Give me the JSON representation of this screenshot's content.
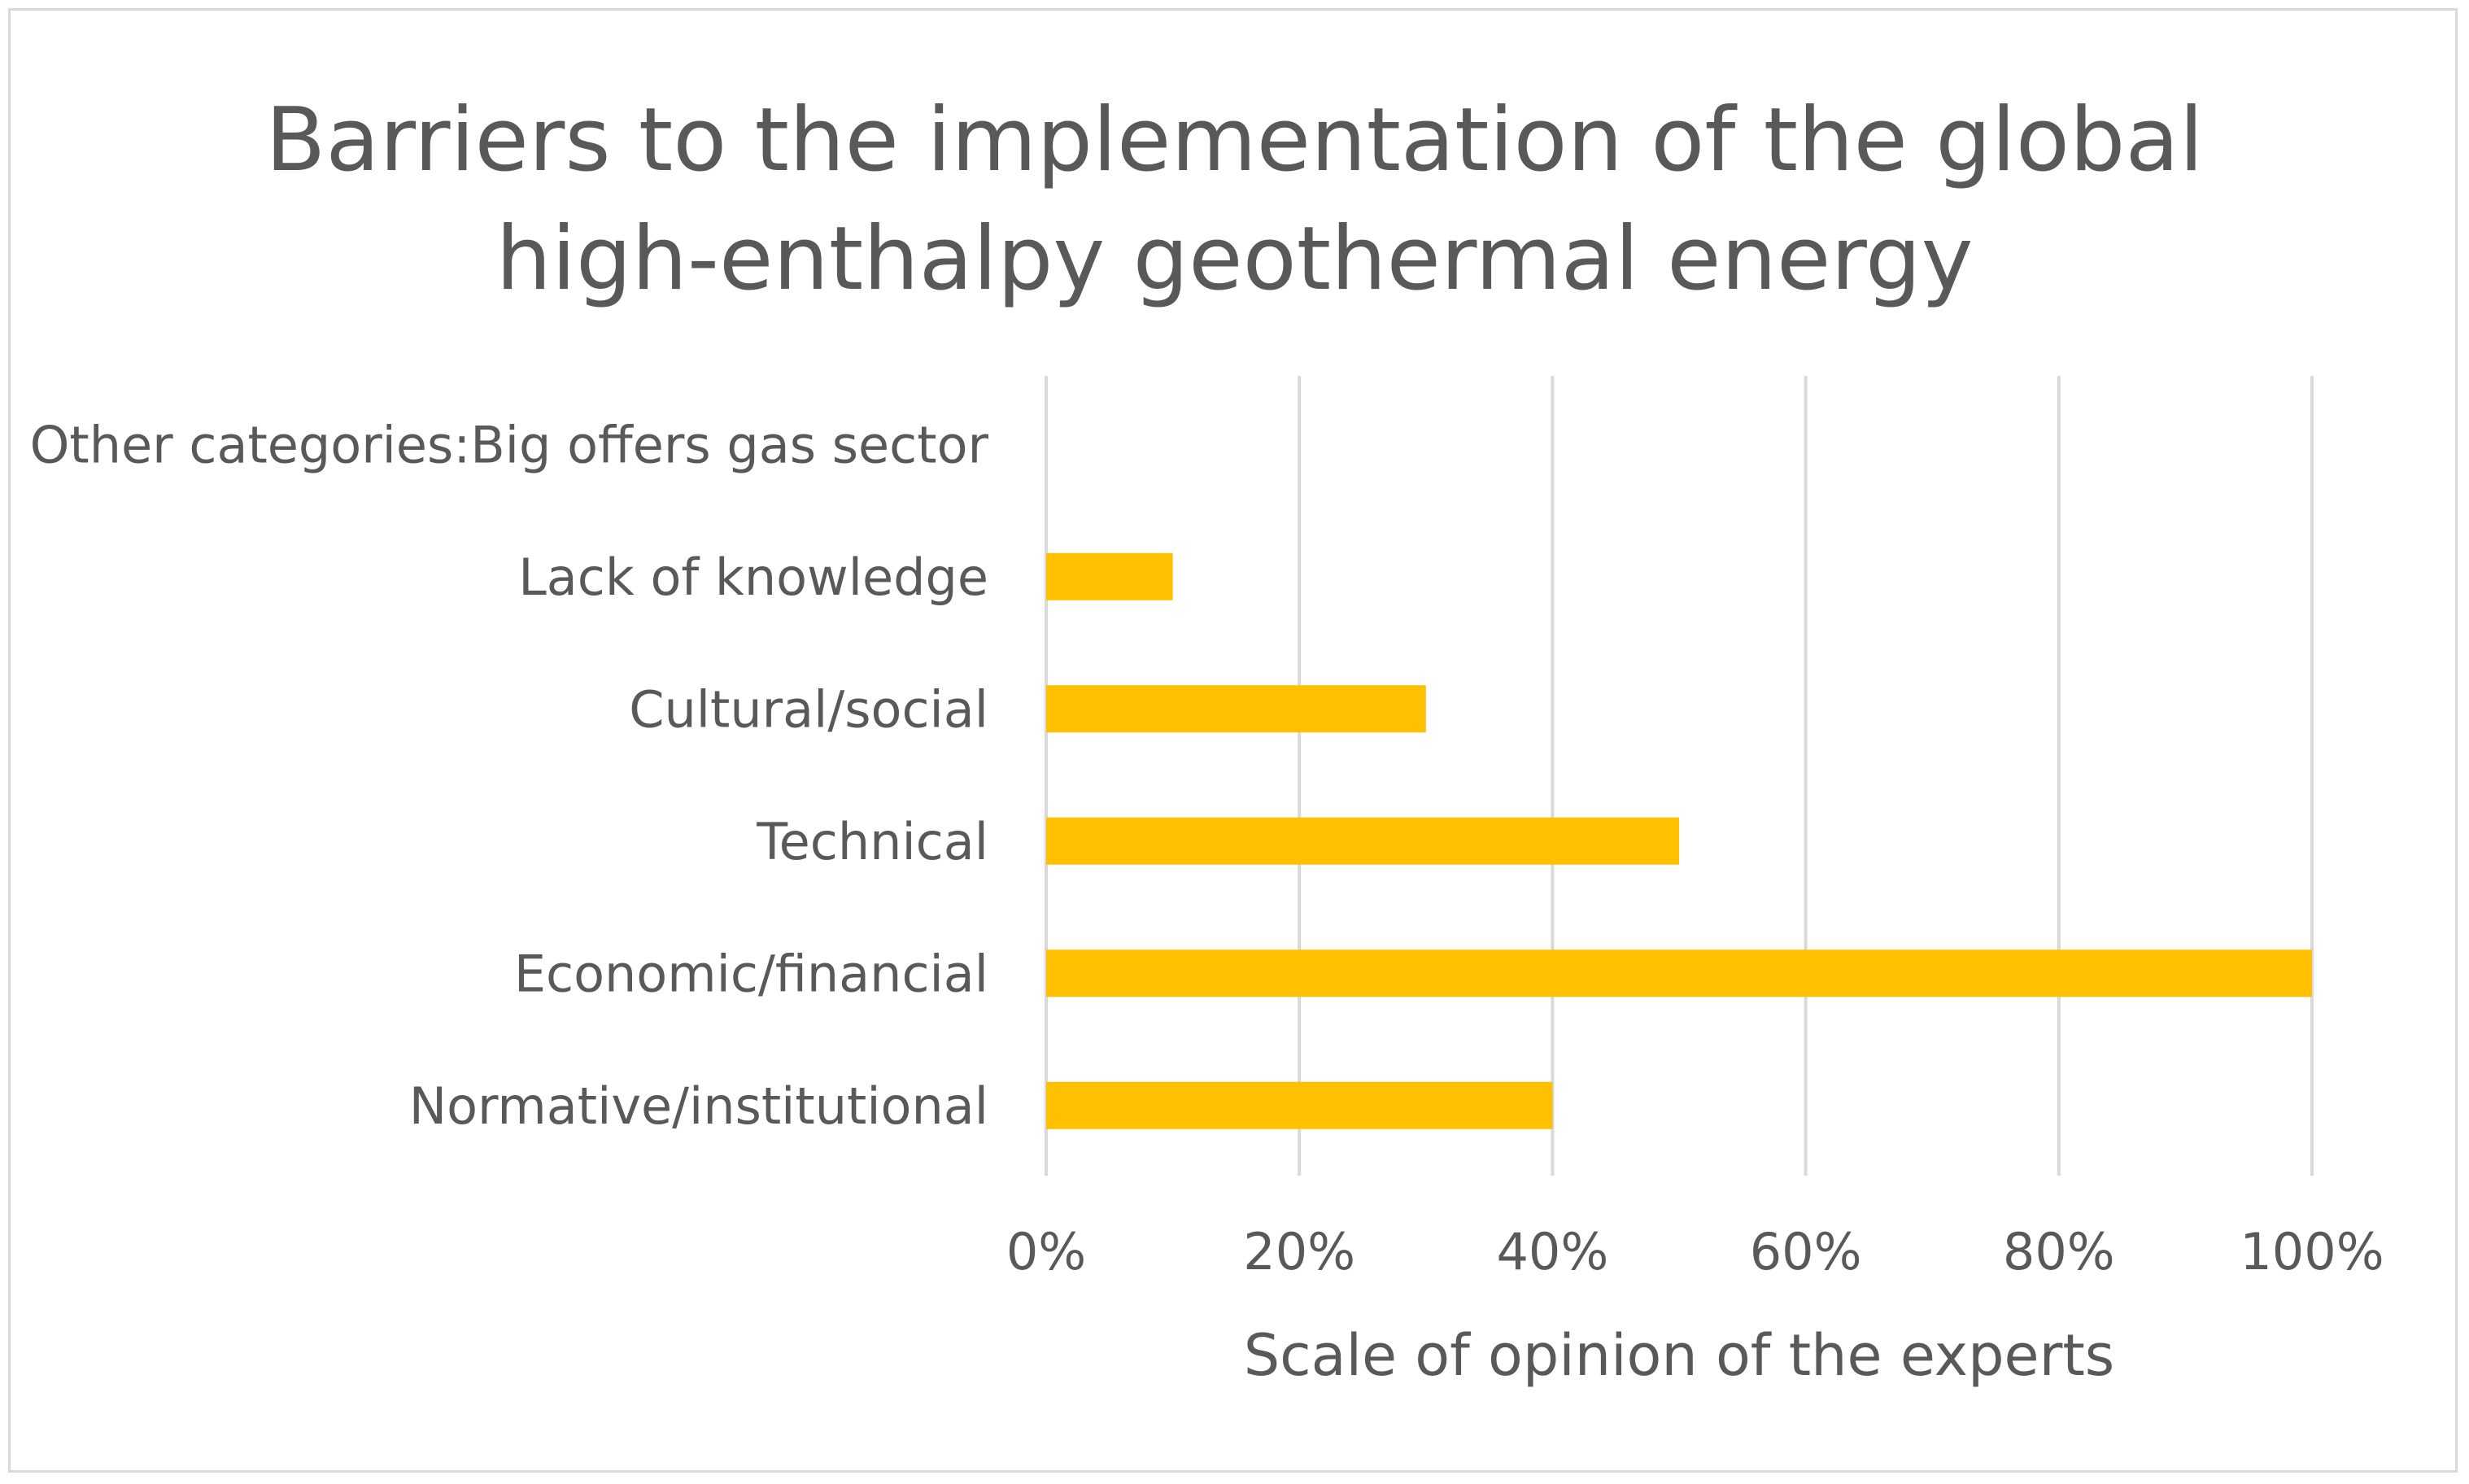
{
  "chart_data": {
    "type": "bar",
    "orientation": "horizontal",
    "title_lines": [
      "Barriers to the implementation of the global",
      "high-enthalpy geothermal energy"
    ],
    "xlabel": "Scale of opinion of the experts",
    "ylabel": "",
    "categories": [
      "Normative/institutional",
      "Economic/financial",
      "Technical",
      "Cultural/social",
      "Lack of knowledge",
      "Other categories:Big offers gas sector"
    ],
    "values": [
      0.4,
      1.0,
      0.5,
      0.3,
      0.1,
      0
    ],
    "xlim": [
      0,
      1
    ],
    "xticks": [
      0,
      0.2,
      0.4,
      0.6,
      0.8,
      1.0
    ],
    "xtick_labels": [
      "0%",
      "20%",
      "40%",
      "60%",
      "80%",
      "100%"
    ],
    "grid": "vertical",
    "legend": "none",
    "colors": {
      "bar": "#FFC000",
      "grid": "#d9d9d9",
      "text": "#595959"
    }
  }
}
